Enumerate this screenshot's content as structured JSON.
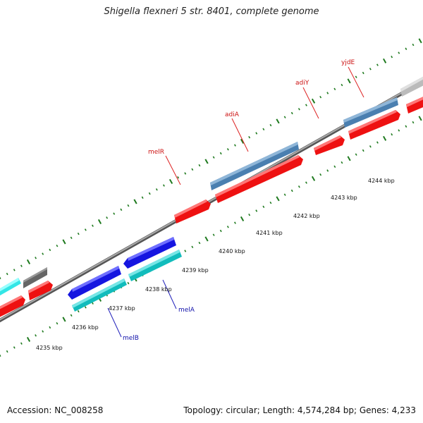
{
  "title": "Shigella flexneri 5 str. 8401, complete genome",
  "accession_text": "Accession: NC_008258",
  "stats_text": "Topology: circular; Length: 4,574,284 bp; Genes: 4,233",
  "colors": {
    "backbone": "#8a8a8a",
    "tick": "#1f7a1f",
    "forward_gene": "#ee1111",
    "reverse_gene": "#1111dd",
    "label_forward": "#cc1111",
    "label_reverse": "#1111aa"
  },
  "map": {
    "ruler_labels": [
      "4235 kbp",
      "4236 kbp",
      "4237 kbp",
      "4238 kbp",
      "4239 kbp",
      "4240 kbp",
      "4241 kbp",
      "4242 kbp",
      "4243 kbp",
      "4244 kbp"
    ],
    "gene_labels": [
      {
        "name": "melR",
        "strand": "forward"
      },
      {
        "name": "adiA",
        "strand": "forward"
      },
      {
        "name": "adiY",
        "strand": "forward"
      },
      {
        "name": "yjdE",
        "strand": "forward"
      },
      {
        "name": "melA",
        "strand": "reverse"
      },
      {
        "name": "melB",
        "strand": "reverse"
      }
    ]
  }
}
